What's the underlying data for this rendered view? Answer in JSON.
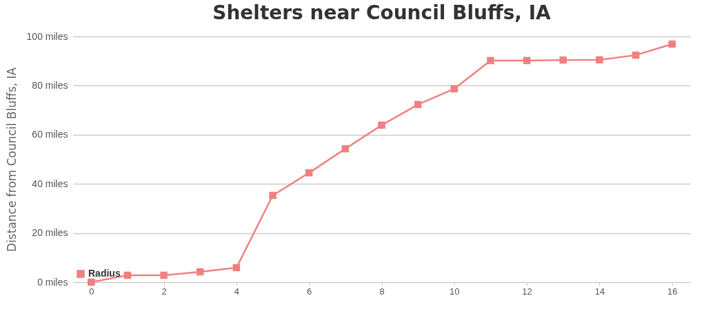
{
  "chart_data": {
    "type": "line",
    "title": "Shelters near Council Bluffs, IA",
    "ylabel": "Distance from Council Bluffs, IA",
    "x": [
      0,
      1,
      2,
      3,
      4,
      5,
      6,
      7,
      8,
      9,
      10,
      11,
      12,
      13,
      14,
      15,
      16
    ],
    "series": [
      {
        "name": "Radius",
        "color": "#f08080",
        "values": [
          0,
          2.8,
          2.8,
          4.2,
          5.9,
          35.3,
          44.5,
          54.3,
          63.9,
          72.3,
          78.7,
          90.2,
          90.2,
          90.4,
          90.5,
          92.4,
          96.9
        ]
      }
    ],
    "xlim": [
      -0.5,
      16.5
    ],
    "xticks": [
      0,
      2,
      4,
      6,
      8,
      10,
      12,
      14,
      16
    ],
    "ylim": [
      0,
      100
    ],
    "yticks": [
      {
        "value": 0,
        "label": "0 miles"
      },
      {
        "value": 20,
        "label": "20 miles"
      },
      {
        "value": 40,
        "label": "40 miles"
      },
      {
        "value": 60,
        "label": "60 miles"
      },
      {
        "value": 80,
        "label": "80 miles"
      },
      {
        "value": 100,
        "label": "100 miles"
      }
    ],
    "grid": "y",
    "legend": "bottom left",
    "marker": "square",
    "line_style": "solid"
  }
}
